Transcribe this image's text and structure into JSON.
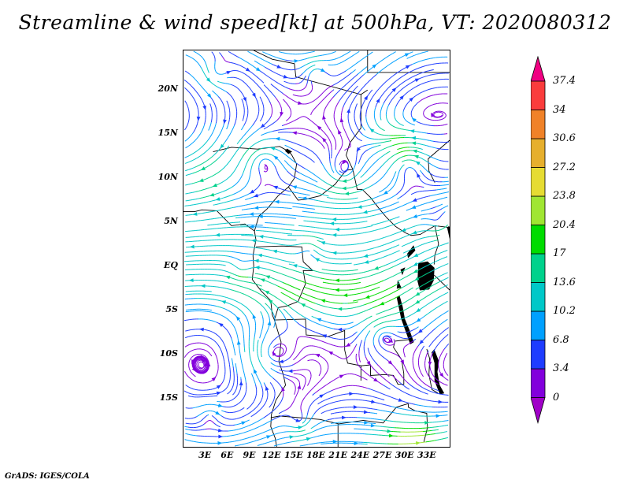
{
  "title": "Streamline & wind speed[kt] at 500hPa, VT: 2020080312",
  "attribution": "GrADS: IGES/COLA",
  "chart_data": {
    "type": "streamline-map",
    "variable": "wind speed",
    "units": "kt",
    "pressure_level": "500hPa",
    "valid_time": "2020080312",
    "region": "Central Africa",
    "x_ticks": [
      "3E",
      "6E",
      "9E",
      "12E",
      "15E",
      "18E",
      "21E",
      "24E",
      "27E",
      "30E",
      "33E"
    ],
    "x_tick_lons": [
      3,
      6,
      9,
      12,
      15,
      18,
      21,
      24,
      27,
      30,
      33
    ],
    "y_ticks": [
      "20N",
      "15N",
      "10N",
      "5N",
      "EQ",
      "5S",
      "10S",
      "15S"
    ],
    "y_tick_lats": [
      20,
      15,
      10,
      5,
      0,
      -5,
      -10,
      -15
    ],
    "lon_range": [
      0,
      36
    ],
    "lat_range": [
      -20.5,
      24.5
    ],
    "grid": false,
    "legend_position": "right",
    "colorbar": {
      "levels": [
        0,
        3.4,
        6.8,
        10.2,
        13.6,
        17,
        20.4,
        23.8,
        27.2,
        30.6,
        34,
        37.4
      ],
      "colors": [
        "#8200dc",
        "#1e3cff",
        "#00a0ff",
        "#00c8c8",
        "#00d28c",
        "#00dc00",
        "#a0e632",
        "#e6dc32",
        "#e6af2d",
        "#f08228",
        "#fa3c3c"
      ],
      "below_color": "#a000c8",
      "above_color": "#f00082"
    }
  }
}
